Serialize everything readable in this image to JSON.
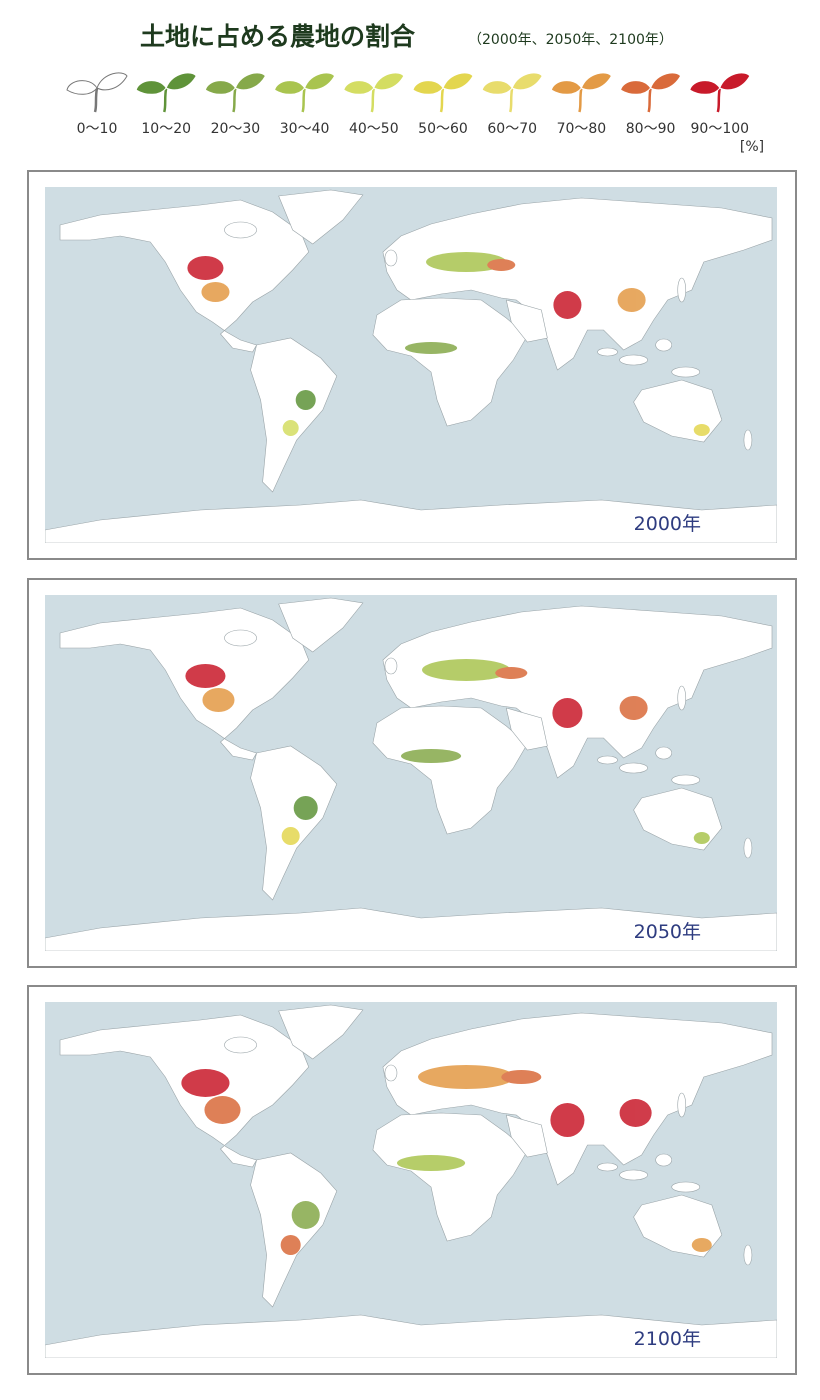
{
  "header": {
    "title": "土地に占める農地の割合",
    "subtitle": "（2000年、2050年、2100年）"
  },
  "legend": {
    "items": [
      {
        "label": "0〜10",
        "color": "#ffffff"
      },
      {
        "label": "10〜20",
        "color": "#5f9339"
      },
      {
        "label": "20〜30",
        "color": "#86a94a"
      },
      {
        "label": "30〜40",
        "color": "#a9c44f"
      },
      {
        "label": "40〜50",
        "color": "#d4dd62"
      },
      {
        "label": "50〜60",
        "color": "#e3d64f"
      },
      {
        "label": "60〜70",
        "color": "#e8dc6c"
      },
      {
        "label": "70〜80",
        "color": "#e39a45"
      },
      {
        "label": "80〜90",
        "color": "#d96a3a"
      },
      {
        "label": "90〜100",
        "color": "#c81a2a"
      }
    ],
    "unit": "[%]"
  },
  "maps": [
    {
      "label": "2000年"
    },
    {
      "label": "2050年"
    },
    {
      "label": "2100年"
    }
  ]
}
